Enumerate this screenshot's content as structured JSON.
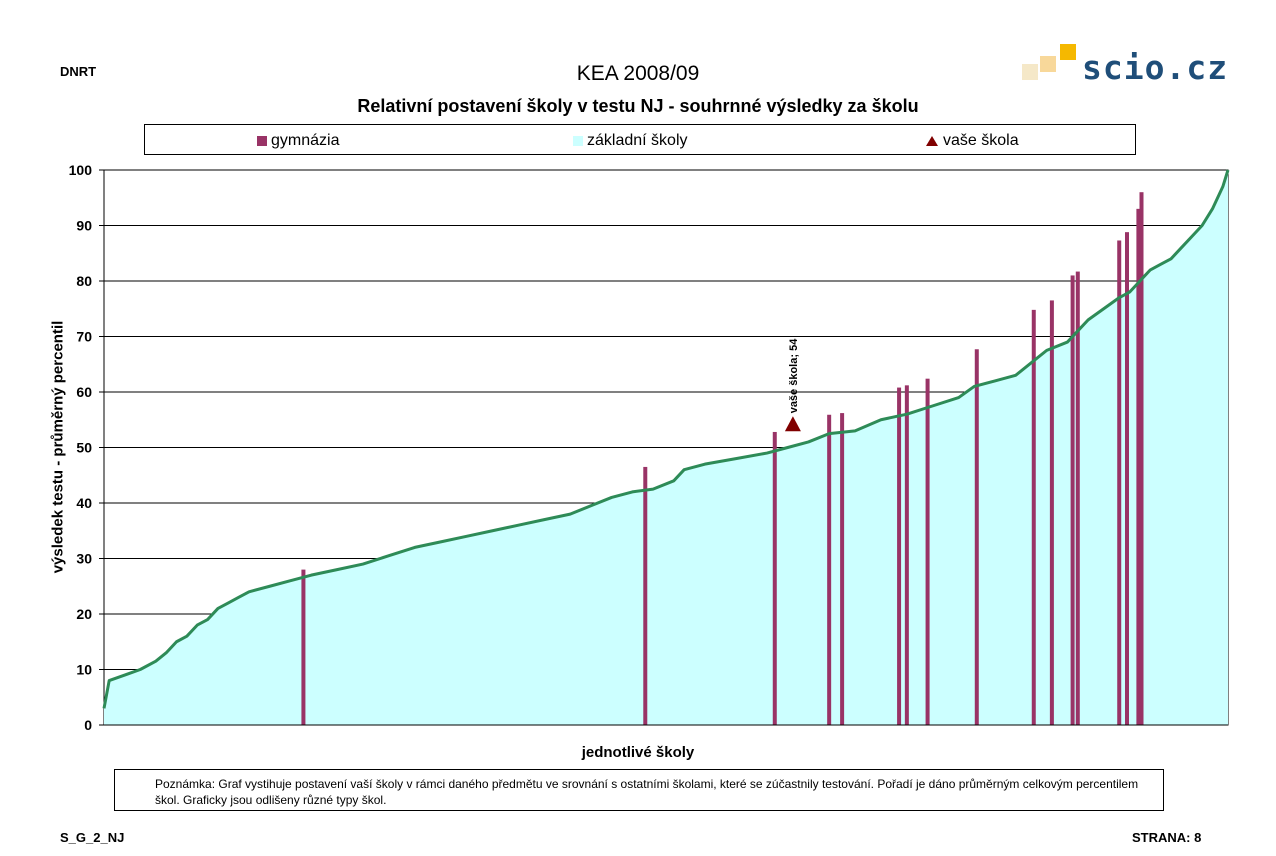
{
  "header": {
    "left_label": "DNRT",
    "title": "KEA 2008/09",
    "subtitle": "Relativní postavení školy v testu NJ - souhrnné výsledky za školu"
  },
  "logo": {
    "text": "scio.cz",
    "colors": [
      "#f5e8c8",
      "#f8d89a",
      "#f5b800"
    ]
  },
  "legend": [
    {
      "label": "gymnázia",
      "color": "#993366",
      "marker": "square"
    },
    {
      "label": "základní školy",
      "color": "#ccffff",
      "marker": "square"
    },
    {
      "label": "vaše škola",
      "color": "#800000",
      "marker": "triangle"
    }
  ],
  "note": "Poznámka: Graf vystihuje postavení vaší školy v rámci daného předmětu ve srovnání s ostatními školami, které se zúčastnily testování. Pořadí je dáno průměrným celkovým percentilem škol. Graficky jsou odlišeny různé typy škol.",
  "footer": {
    "left": "S_G_2_NJ",
    "right": "STRANA: 8"
  },
  "colors": {
    "line": "#2e8b57",
    "area": "#ccffff",
    "gym": "#993366",
    "marker": "#800000"
  },
  "chart_data": {
    "type": "area",
    "title": "Relativní postavení školy v testu NJ - souhrnné výsledky za školu",
    "xlabel": "jednotlivé školy",
    "ylabel": "výsledek testu - průměrný percentil",
    "ylim": [
      0,
      100
    ],
    "yticks": [
      0,
      10,
      20,
      30,
      40,
      50,
      60,
      70,
      80,
      90,
      100
    ],
    "grid": true,
    "legend_position": "top",
    "n_schools": 200,
    "curve": [
      [
        0,
        3
      ],
      [
        1,
        8
      ],
      [
        4,
        9
      ],
      [
        7,
        10
      ],
      [
        10,
        11.5
      ],
      [
        12,
        13
      ],
      [
        14,
        15
      ],
      [
        16,
        16
      ],
      [
        18,
        18
      ],
      [
        20,
        19
      ],
      [
        22,
        21
      ],
      [
        24,
        22
      ],
      [
        26,
        23
      ],
      [
        28,
        24
      ],
      [
        32,
        25
      ],
      [
        36,
        26
      ],
      [
        40,
        27
      ],
      [
        45,
        28
      ],
      [
        50,
        29
      ],
      [
        55,
        30.5
      ],
      [
        60,
        32
      ],
      [
        65,
        33
      ],
      [
        70,
        34
      ],
      [
        75,
        35
      ],
      [
        80,
        36
      ],
      [
        85,
        37
      ],
      [
        90,
        38
      ],
      [
        94,
        39.5
      ],
      [
        98,
        41
      ],
      [
        102,
        42
      ],
      [
        106,
        42.5
      ],
      [
        110,
        44
      ],
      [
        112,
        46
      ],
      [
        116,
        47
      ],
      [
        122,
        48
      ],
      [
        128,
        49
      ],
      [
        132,
        50
      ],
      [
        136,
        51
      ],
      [
        140,
        52.5
      ],
      [
        145,
        53
      ],
      [
        150,
        55
      ],
      [
        155,
        56
      ],
      [
        160,
        57.5
      ],
      [
        165,
        59
      ],
      [
        168,
        61
      ],
      [
        172,
        62
      ],
      [
        176,
        63
      ],
      [
        180,
        66
      ],
      [
        182,
        67.5
      ],
      [
        186,
        69
      ],
      [
        188,
        71
      ],
      [
        190,
        73
      ],
      [
        193,
        75
      ],
      [
        196,
        77
      ],
      [
        198,
        78
      ],
      [
        200,
        80
      ],
      [
        202,
        82
      ],
      [
        204,
        83
      ],
      [
        206,
        84
      ],
      [
        208,
        86
      ],
      [
        210,
        88
      ],
      [
        212,
        90
      ],
      [
        214,
        93
      ],
      [
        215,
        95
      ],
      [
        216,
        97
      ],
      [
        217,
        100
      ]
    ],
    "gymnazia": [
      [
        38.5,
        28
      ],
      [
        104.5,
        46.5
      ],
      [
        129.5,
        52.8
      ],
      [
        140,
        55.9
      ],
      [
        142.5,
        56.2
      ],
      [
        153.5,
        60.8
      ],
      [
        155,
        61.2
      ],
      [
        159,
        62.4
      ],
      [
        168.5,
        67.7
      ],
      [
        179.5,
        74.8
      ],
      [
        183,
        76.5
      ],
      [
        187,
        81
      ],
      [
        188,
        81.7
      ],
      [
        196,
        87.3
      ],
      [
        197.5,
        88.8
      ],
      [
        199.7,
        93
      ],
      [
        200.3,
        96
      ]
    ],
    "your_school": {
      "label": "vaše škola",
      "x": 133,
      "value": 54,
      "annotation": "vaše škola; 54"
    }
  }
}
